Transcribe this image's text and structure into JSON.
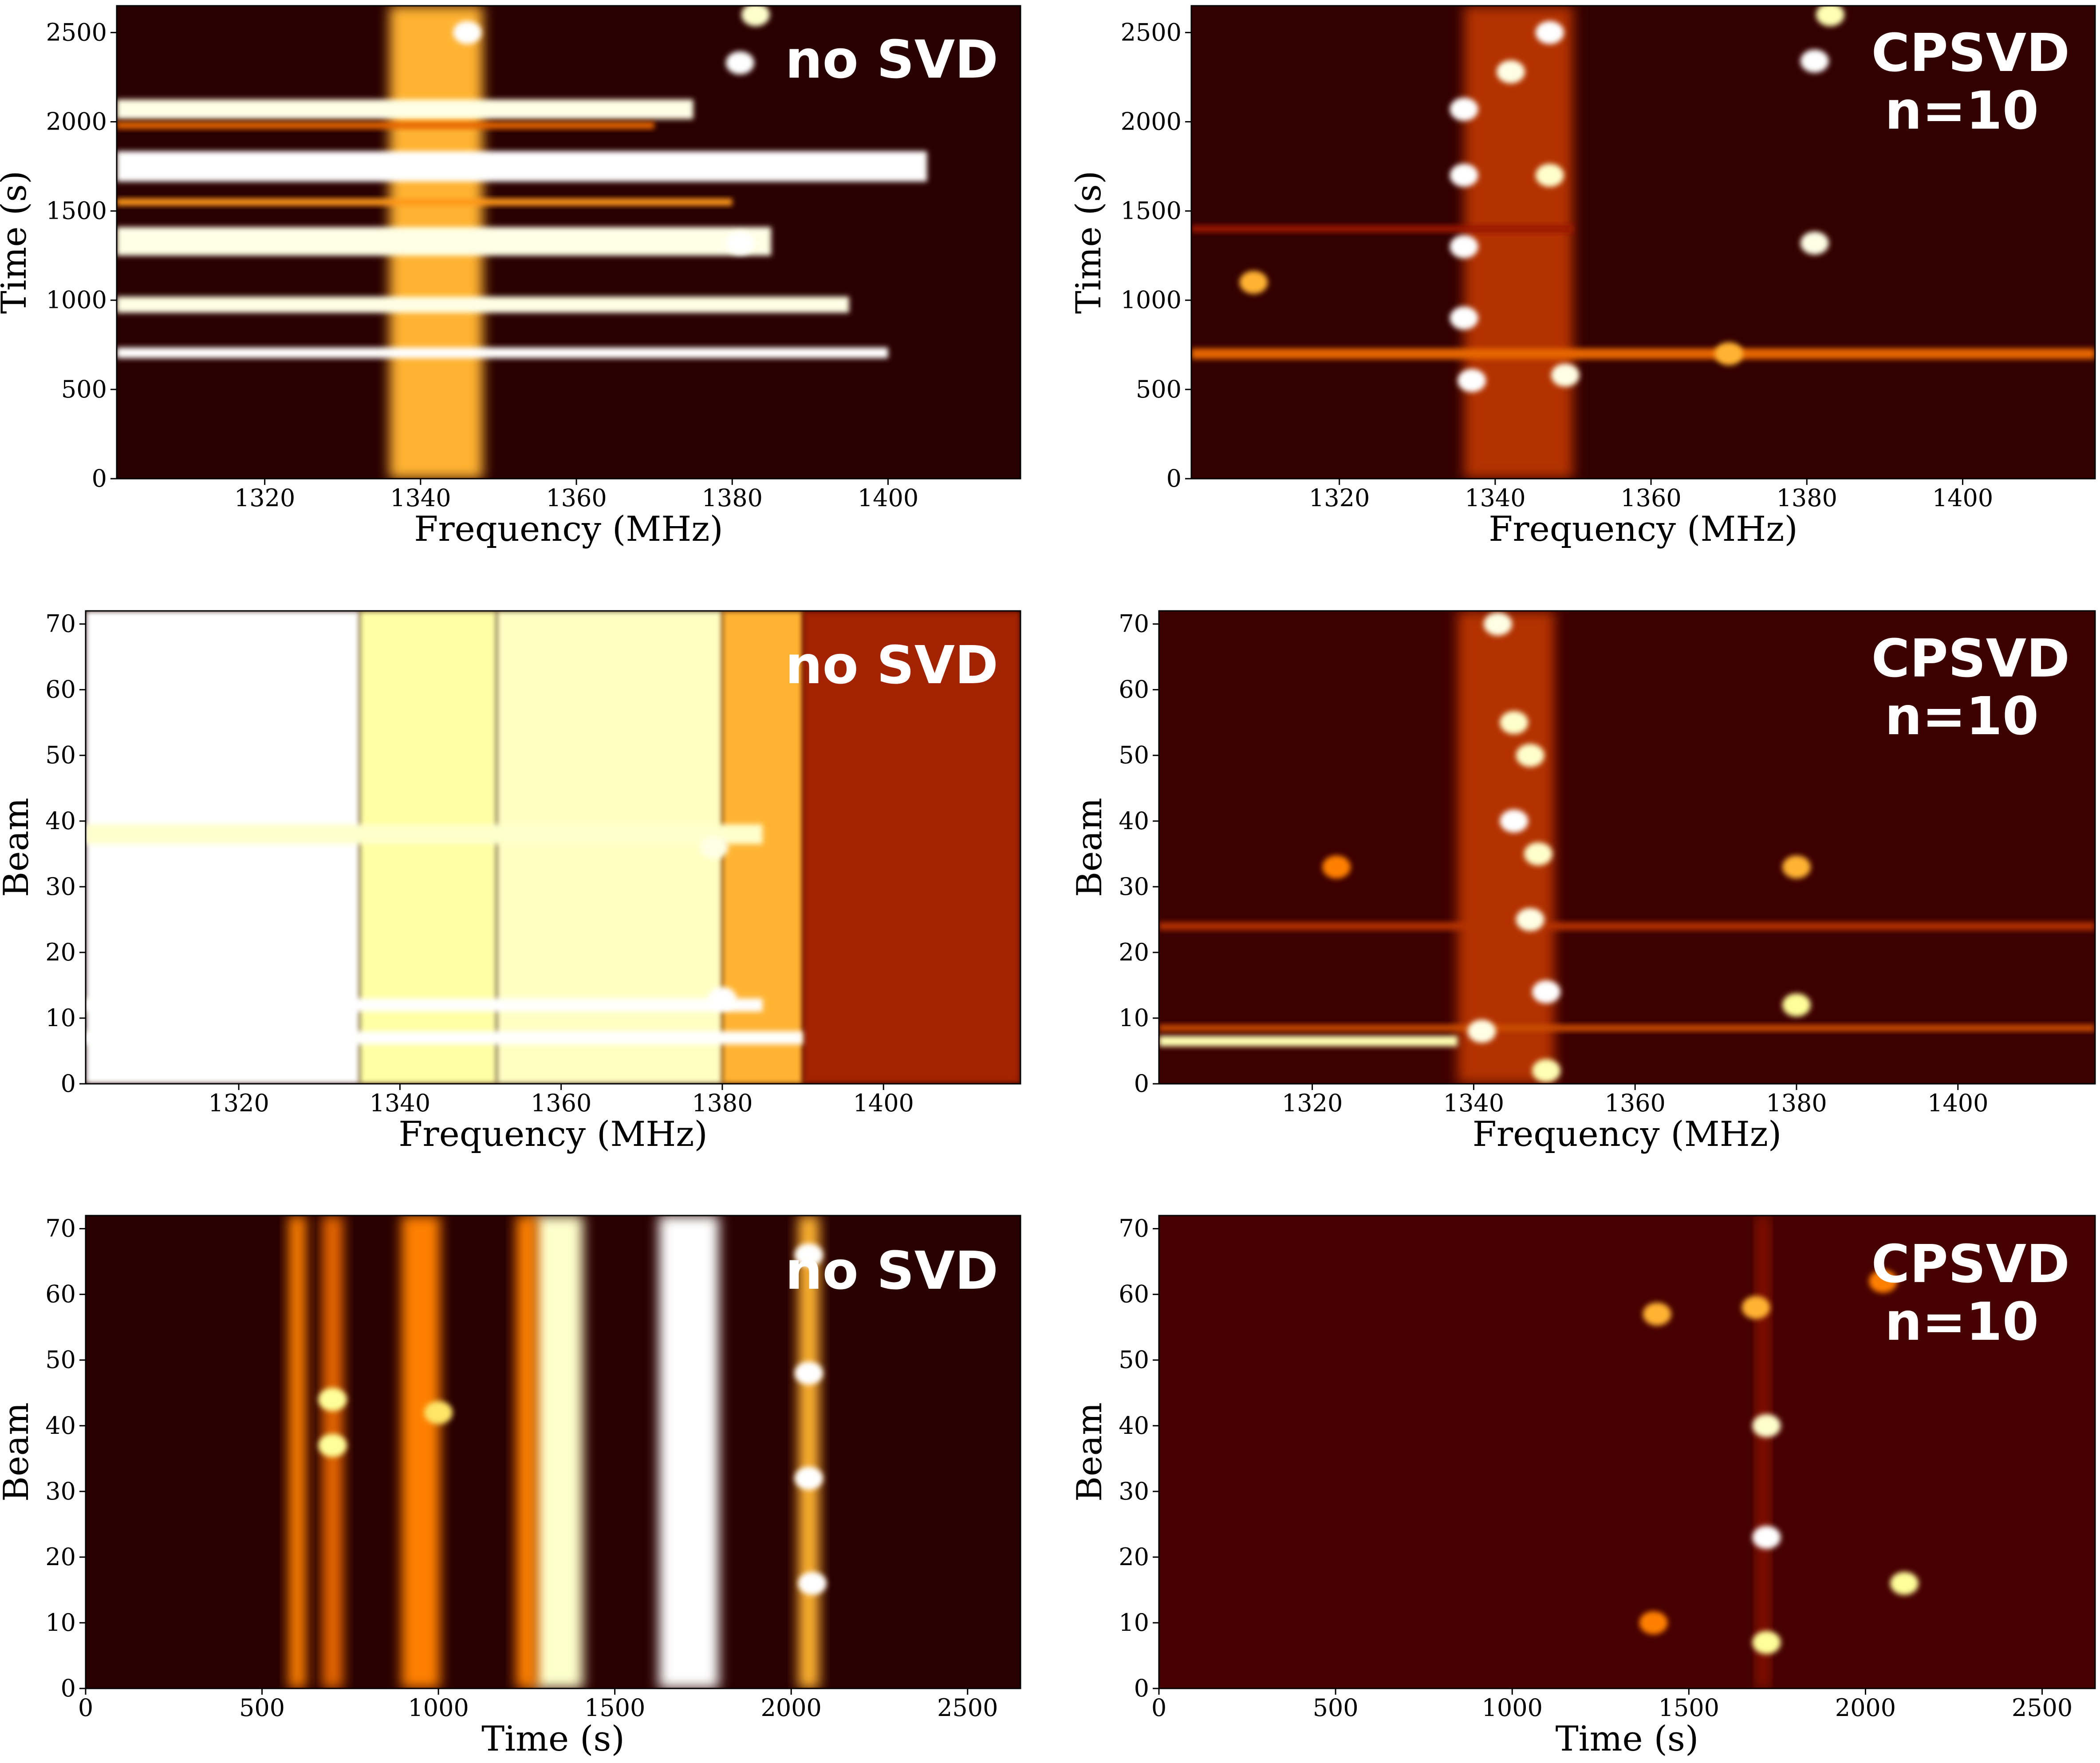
{
  "chart_data": [
    {
      "type": "heatmap",
      "panel": "time-frequency",
      "annotation": [
        "no SVD"
      ],
      "xlabel": "Frequency (MHz)",
      "ylabel": "Time (s)",
      "xlim": [
        1301,
        1417
      ],
      "ylim": [
        0,
        2650
      ],
      "xticks": [
        1320,
        1340,
        1360,
        1380,
        1400
      ],
      "yticks": [
        0,
        500,
        1000,
        1500,
        2000,
        2500
      ],
      "colormap": "afmhot",
      "background_level": 0.08,
      "rows": [
        {
          "y": 2070,
          "h": 110,
          "level": 0.95,
          "x_end": 1375
        },
        {
          "y": 1750,
          "h": 170,
          "level": 1.0,
          "x_end": 1405
        },
        {
          "y": 1330,
          "h": 160,
          "level": 0.95,
          "x_end": 1385
        },
        {
          "y": 975,
          "h": 90,
          "level": 0.95,
          "x_end": 1395
        },
        {
          "y": 705,
          "h": 60,
          "level": 1.0,
          "x_end": 1400
        },
        {
          "y": 1550,
          "h": 40,
          "level": 0.55,
          "x_end": 1380
        },
        {
          "y": 1980,
          "h": 40,
          "level": 0.45,
          "x_end": 1370
        }
      ],
      "bands": [
        {
          "x": 1342,
          "w": 12,
          "level": 0.6
        }
      ],
      "spots": [
        {
          "x": 1381,
          "y": 2330,
          "level": 1.0
        },
        {
          "x": 1381,
          "y": 1320,
          "level": 1.0
        },
        {
          "x": 1383,
          "y": 2600,
          "level": 0.9
        },
        {
          "x": 1346,
          "y": 2500,
          "level": 1.0
        }
      ]
    },
    {
      "type": "heatmap",
      "panel": "time-frequency",
      "annotation": [
        "CPSVD",
        "n=10"
      ],
      "xlabel": "Frequency (MHz)",
      "ylabel": "Time (s)",
      "xlim": [
        1301,
        1417
      ],
      "ylim": [
        0,
        2650
      ],
      "xticks": [
        1320,
        1340,
        1360,
        1380,
        1400
      ],
      "yticks": [
        0,
        500,
        1000,
        1500,
        2000,
        2500
      ],
      "colormap": "afmhot",
      "background_level": 0.1,
      "rows": [
        {
          "y": 700,
          "h": 60,
          "level": 0.45,
          "x_end": 1417
        },
        {
          "y": 1400,
          "h": 40,
          "level": 0.3,
          "x_end": 1350
        }
      ],
      "bands": [
        {
          "x": 1343,
          "w": 14,
          "level": 0.35
        }
      ],
      "spots": [
        {
          "x": 1336,
          "y": 2070,
          "level": 1.0
        },
        {
          "x": 1336,
          "y": 1700,
          "level": 1.0
        },
        {
          "x": 1336,
          "y": 1300,
          "level": 1.0
        },
        {
          "x": 1336,
          "y": 900,
          "level": 1.0
        },
        {
          "x": 1337,
          "y": 550,
          "level": 1.0
        },
        {
          "x": 1347,
          "y": 2500,
          "level": 1.0
        },
        {
          "x": 1342,
          "y": 2280,
          "level": 0.95
        },
        {
          "x": 1347,
          "y": 1700,
          "level": 0.9
        },
        {
          "x": 1349,
          "y": 580,
          "level": 0.95
        },
        {
          "x": 1381,
          "y": 2340,
          "level": 1.0
        },
        {
          "x": 1381,
          "y": 1320,
          "level": 0.95
        },
        {
          "x": 1383,
          "y": 2600,
          "level": 0.85
        },
        {
          "x": 1309,
          "y": 1100,
          "level": 0.6
        },
        {
          "x": 1370,
          "y": 700,
          "level": 0.6
        }
      ]
    },
    {
      "type": "heatmap",
      "panel": "beam-frequency",
      "annotation": [
        "no SVD"
      ],
      "xlabel": "Frequency (MHz)",
      "ylabel": "Beam",
      "xlim": [
        1301,
        1417
      ],
      "ylim": [
        0,
        72
      ],
      "xticks": [
        1320,
        1340,
        1360,
        1380,
        1400
      ],
      "yticks": [
        0,
        10,
        20,
        30,
        40,
        50,
        60,
        70
      ],
      "colormap": "afmhot",
      "columns": [
        {
          "x0": 1301,
          "x1": 1335,
          "level": 1.0
        },
        {
          "x0": 1335,
          "x1": 1352,
          "level": 0.82
        },
        {
          "x0": 1352,
          "x1": 1380,
          "level": 0.88
        },
        {
          "x0": 1380,
          "x1": 1390,
          "level": 0.6
        },
        {
          "x0": 1390,
          "x1": 1417,
          "level": 0.32
        }
      ],
      "rows": [
        {
          "y": 7,
          "h": 2,
          "level": 1.0,
          "x_end": 1390
        },
        {
          "y": 12,
          "h": 2,
          "level": 1.0,
          "x_end": 1385
        },
        {
          "y": 38,
          "h": 3,
          "level": 0.9,
          "x_end": 1385
        }
      ],
      "spots": [
        {
          "x": 1380,
          "y": 13,
          "level": 1.0
        },
        {
          "x": 1379,
          "y": 36,
          "level": 0.95
        }
      ]
    },
    {
      "type": "heatmap",
      "panel": "beam-frequency",
      "annotation": [
        "CPSVD",
        "n=10"
      ],
      "xlabel": "Frequency (MHz)",
      "ylabel": "Beam",
      "xlim": [
        1301,
        1417
      ],
      "ylim": [
        0,
        72
      ],
      "xticks": [
        1320,
        1340,
        1360,
        1380,
        1400
      ],
      "yticks": [
        0,
        10,
        20,
        30,
        40,
        50,
        60,
        70
      ],
      "colormap": "afmhot",
      "background_level": 0.12,
      "rows": [
        {
          "y": 6.5,
          "h": 1.6,
          "level": 0.85,
          "x_end": 1338
        },
        {
          "y": 8.5,
          "h": 1.0,
          "level": 0.4,
          "x_end": 1417
        },
        {
          "y": 24,
          "h": 1.2,
          "level": 0.35,
          "x_end": 1417
        }
      ],
      "bands": [
        {
          "x": 1344,
          "w": 12,
          "level": 0.35
        }
      ],
      "spots": [
        {
          "x": 1343,
          "y": 70,
          "level": 0.95
        },
        {
          "x": 1345,
          "y": 55,
          "level": 0.9
        },
        {
          "x": 1347,
          "y": 50,
          "level": 0.9
        },
        {
          "x": 1345,
          "y": 40,
          "level": 1.0
        },
        {
          "x": 1348,
          "y": 35,
          "level": 0.9
        },
        {
          "x": 1347,
          "y": 25,
          "level": 0.95
        },
        {
          "x": 1349,
          "y": 14,
          "level": 1.0
        },
        {
          "x": 1341,
          "y": 8,
          "level": 0.95
        },
        {
          "x": 1349,
          "y": 2,
          "level": 0.85
        },
        {
          "x": 1380,
          "y": 12,
          "level": 0.8
        },
        {
          "x": 1380,
          "y": 33,
          "level": 0.6
        },
        {
          "x": 1323,
          "y": 33,
          "level": 0.5
        }
      ]
    },
    {
      "type": "heatmap",
      "panel": "beam-time",
      "annotation": [
        "no SVD"
      ],
      "xlabel": "Time (s)",
      "ylabel": "Beam",
      "xlim": [
        0,
        2650
      ],
      "ylim": [
        0,
        72
      ],
      "xticks": [
        0,
        500,
        1000,
        1500,
        2000,
        2500
      ],
      "yticks": [
        0,
        10,
        20,
        30,
        40,
        50,
        60,
        70
      ],
      "colormap": "afmhot",
      "background_level": 0.08,
      "bands": [
        {
          "x": 600,
          "w": 50,
          "level": 0.5
        },
        {
          "x": 700,
          "w": 60,
          "level": 0.45
        },
        {
          "x": 950,
          "w": 110,
          "level": 0.5
        },
        {
          "x": 1340,
          "w": 140,
          "level": 0.9
        },
        {
          "x": 1250,
          "w": 60,
          "level": 0.5
        },
        {
          "x": 1710,
          "w": 170,
          "level": 1.0
        },
        {
          "x": 2050,
          "w": 60,
          "level": 0.6
        }
      ],
      "spots": [
        {
          "x": 2050,
          "y": 66,
          "level": 1.0
        },
        {
          "x": 2050,
          "y": 48,
          "level": 1.0
        },
        {
          "x": 2050,
          "y": 32,
          "level": 1.0
        },
        {
          "x": 2060,
          "y": 16,
          "level": 1.0
        },
        {
          "x": 700,
          "y": 44,
          "level": 0.8
        },
        {
          "x": 700,
          "y": 37,
          "level": 0.8
        },
        {
          "x": 1000,
          "y": 42,
          "level": 0.7
        }
      ]
    },
    {
      "type": "heatmap",
      "panel": "beam-time",
      "annotation": [
        "CPSVD",
        "n=10"
      ],
      "xlabel": "Time (s)",
      "ylabel": "Beam",
      "xlim": [
        0,
        2650
      ],
      "ylim": [
        0,
        72
      ],
      "xticks": [
        0,
        500,
        1000,
        1500,
        2000,
        2500
      ],
      "yticks": [
        0,
        10,
        20,
        30,
        40,
        50,
        60,
        70
      ],
      "colormap": "afmhot",
      "background_level": 0.14,
      "bands": [
        {
          "x": 1710,
          "w": 30,
          "level": 0.3
        }
      ],
      "spots": [
        {
          "x": 1720,
          "y": 23,
          "level": 1.0
        },
        {
          "x": 1720,
          "y": 40,
          "level": 0.9
        },
        {
          "x": 1720,
          "y": 7,
          "level": 0.8
        },
        {
          "x": 2110,
          "y": 16,
          "level": 0.8
        },
        {
          "x": 1410,
          "y": 57,
          "level": 0.6
        },
        {
          "x": 1690,
          "y": 58,
          "level": 0.6
        },
        {
          "x": 2050,
          "y": 62,
          "level": 0.5
        },
        {
          "x": 1400,
          "y": 10,
          "level": 0.5
        }
      ]
    }
  ]
}
